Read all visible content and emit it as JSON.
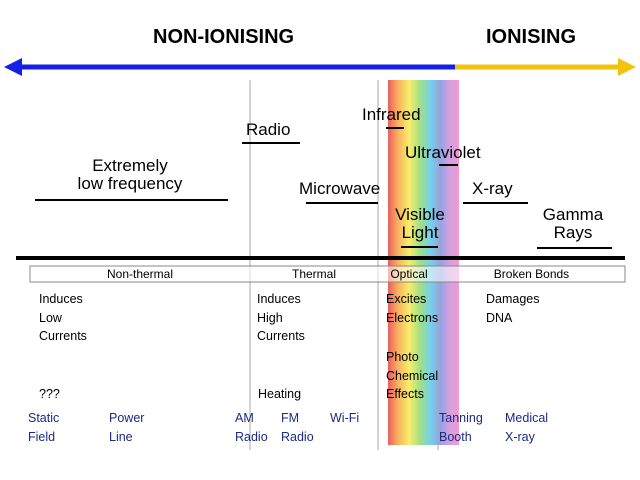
{
  "headings": {
    "non_ionising": "NON-IONISING",
    "ionising": "IONISING"
  },
  "colors": {
    "non_ionising_arrow": "#1420e6",
    "ionising_arrow": "#f2c20c",
    "application_text": "#1b2a84",
    "spectrum": [
      "#e5393f",
      "#f7a13a",
      "#f6ea4c",
      "#8fd96a",
      "#57c6e8",
      "#7c8ee0",
      "#c98cda",
      "#ef84c8"
    ]
  },
  "bands": {
    "elf_line1": "Extremely",
    "elf_line2": "low frequency",
    "radio": "Radio",
    "microwave": "Microwave",
    "infrared": "Infrared",
    "visible_line1": "Visible",
    "visible_line2": "Light",
    "ultraviolet": "Ultraviolet",
    "xray": "X-ray",
    "gamma_line1": "Gamma",
    "gamma_line2": "Rays"
  },
  "categories": {
    "non_thermal": "Non-thermal",
    "thermal": "Thermal",
    "optical": "Optical",
    "broken_bonds": "Broken Bonds"
  },
  "effects": {
    "non_thermal": "Induces\nLow\nCurrents",
    "unknown": "???",
    "thermal": "Induces\nHigh\nCurrents",
    "heating": "Heating",
    "optical": "Excites\nElectrons",
    "photochemical": "Photo\nChemical\nEffects",
    "broken_bonds": "Damages\nDNA"
  },
  "applications": {
    "static_field": "Static\nField",
    "power_line": "Power\nLine",
    "am_radio": "AM\nRadio",
    "fm_radio": "FM\nRadio",
    "wifi": "Wi-Fi",
    "tanning_booth": "Tanning\nBooth",
    "medical_xray": "Medical\nX-ray"
  }
}
